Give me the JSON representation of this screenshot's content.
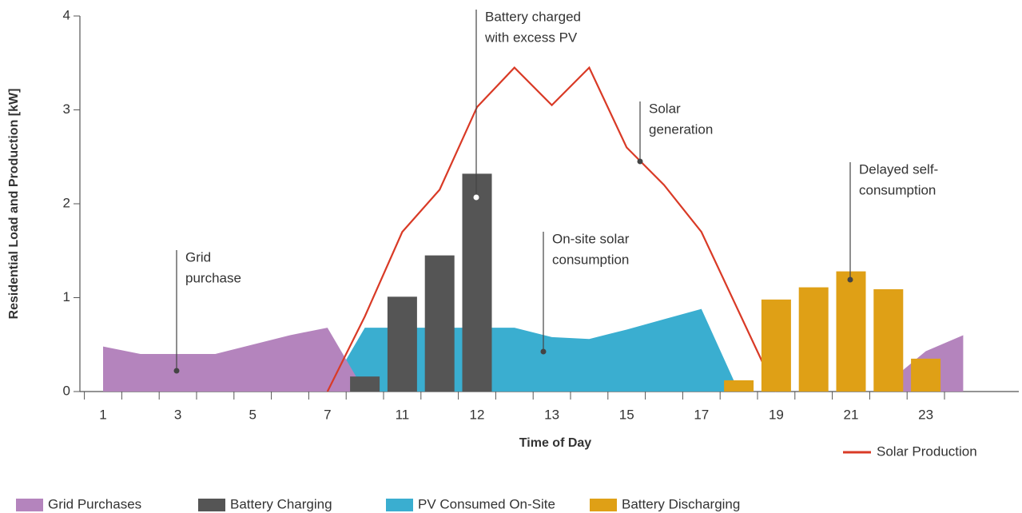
{
  "chart_data": {
    "type": "combo",
    "xlabel": "Time of Day",
    "ylabel": "Residential Load and Production [kW]",
    "categories": [
      "1",
      null,
      "3",
      null,
      "5",
      null,
      "7",
      null,
      "11",
      null,
      "12",
      null,
      "13",
      null,
      "15",
      null,
      "17",
      null,
      "19",
      null,
      "21",
      null,
      "23",
      null
    ],
    "ylim": [
      0,
      4
    ],
    "yticks": [
      0,
      1,
      2,
      3,
      4
    ],
    "series": [
      {
        "name": "PV Consumed On-Site",
        "type": "area",
        "color": "#3aaed0",
        "values": [
          null,
          null,
          null,
          null,
          null,
          null,
          0,
          0.68,
          0.68,
          0.68,
          0.68,
          0.68,
          0.58,
          0.56,
          0.66,
          0.77,
          0.88,
          0,
          null,
          null,
          null,
          null,
          null,
          null
        ]
      },
      {
        "name": "Grid Purchases",
        "type": "area",
        "color": "#b484bd",
        "values": [
          0.48,
          0.4,
          0.4,
          0.4,
          0.5,
          0.6,
          0.68,
          0,
          null,
          null,
          null,
          null,
          null,
          null,
          null,
          null,
          null,
          null,
          null,
          null,
          null,
          0.1,
          0.43,
          0.6
        ]
      },
      {
        "name": "Solar Production",
        "type": "line",
        "color": "#d93a26",
        "values": [
          null,
          null,
          null,
          null,
          null,
          null,
          0,
          0.8,
          1.7,
          2.15,
          3.03,
          3.45,
          3.05,
          3.45,
          2.6,
          2.2,
          1.7,
          0.85,
          0,
          null,
          null,
          null,
          null,
          null
        ]
      },
      {
        "name": "Battery Charging",
        "type": "bar",
        "color": "#555555",
        "values": [
          null,
          null,
          null,
          null,
          null,
          null,
          null,
          0.16,
          1.01,
          1.45,
          2.32,
          null,
          null,
          null,
          null,
          null,
          null,
          null,
          null,
          null,
          null,
          null,
          null,
          null
        ]
      },
      {
        "name": "Battery Discharging",
        "type": "bar",
        "color": "#dfa016",
        "values": [
          null,
          null,
          null,
          null,
          null,
          null,
          null,
          null,
          null,
          null,
          null,
          null,
          null,
          null,
          null,
          null,
          null,
          0.12,
          0.98,
          1.11,
          1.28,
          1.09,
          0.35,
          null
        ]
      }
    ],
    "annotations": [
      [
        "Grid",
        "purchase"
      ],
      [
        "Battery charged",
        "with excess PV"
      ],
      [
        "Solar",
        "generation"
      ],
      [
        "On-site solar",
        "consumption"
      ],
      [
        "Delayed self-",
        "consumption"
      ]
    ]
  }
}
